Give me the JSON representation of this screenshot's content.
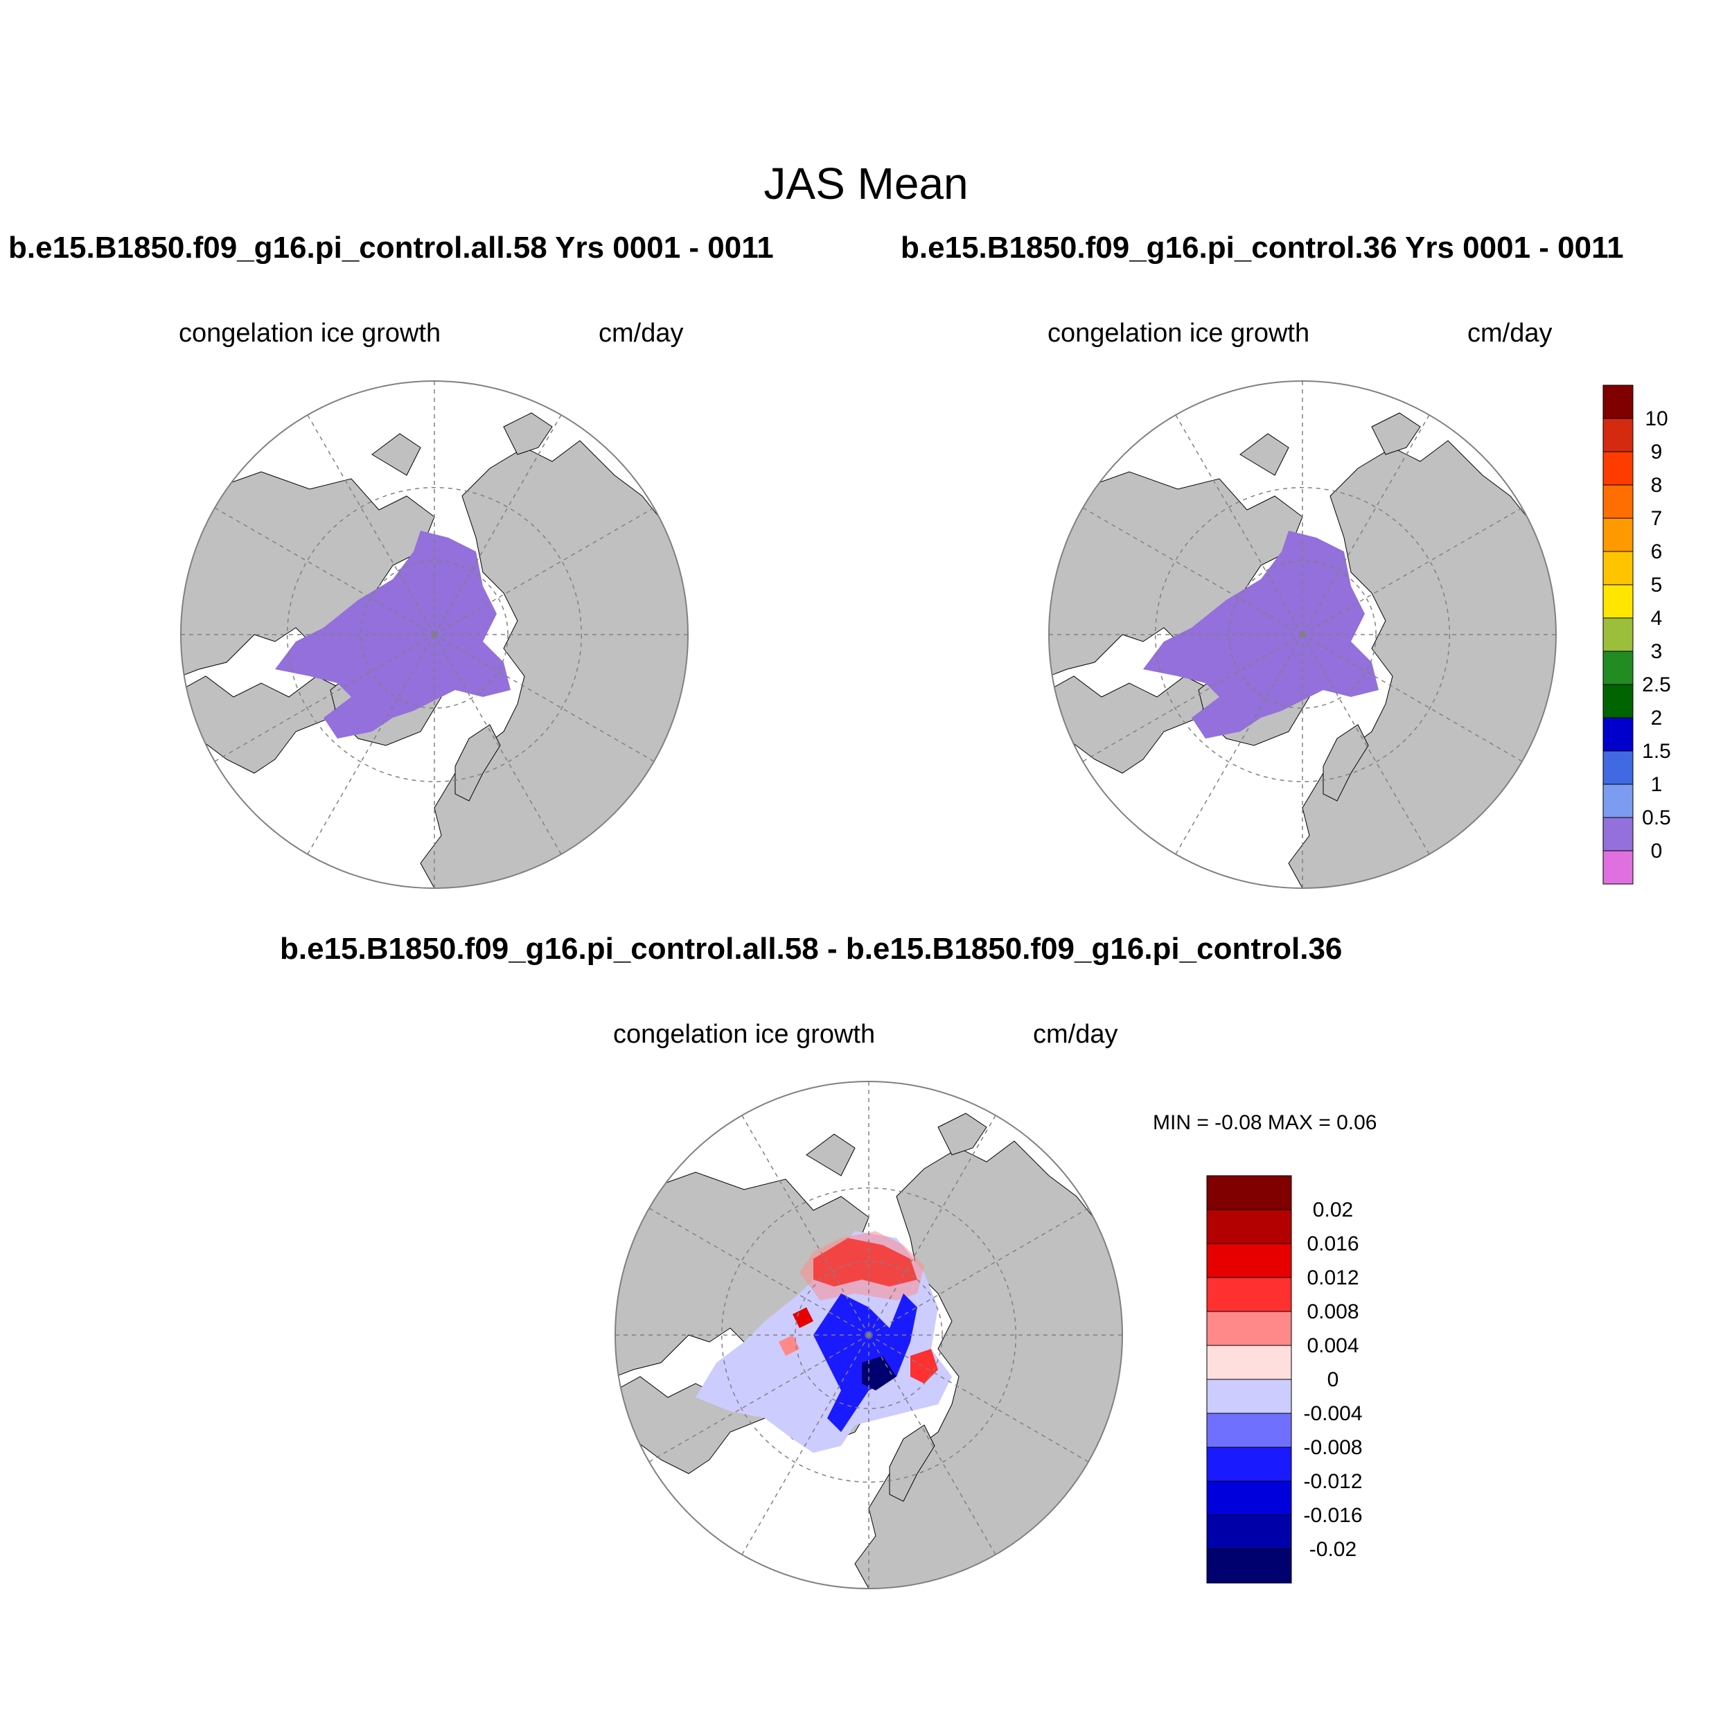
{
  "figure": {
    "title": "JAS Mean",
    "panels": [
      {
        "title": "b.e15.B1850.f09_g16.pi_control.all.58  Yrs 0001 - 0011",
        "left_label": "congelation ice growth",
        "right_label": "cm/day"
      },
      {
        "title": "b.e15.B1850.f09_g16.pi_control.36  Yrs 0001 - 0011",
        "left_label": "congelation ice growth",
        "right_label": "cm/day"
      },
      {
        "title": "b.e15.B1850.f09_g16.pi_control.all.58 - b.e15.B1850.f09_g16.pi_control.36",
        "left_label": "congelation ice growth",
        "right_label": "cm/day",
        "minmax": "MIN =  -0.08 MAX =   0.06"
      }
    ]
  },
  "colorbars": {
    "field": {
      "labels": [
        "10",
        "9",
        "8",
        "7",
        "6",
        "5",
        "4",
        "3",
        "2.5",
        "2",
        "1.5",
        "1",
        "0.5",
        "0"
      ],
      "colors": [
        "#800000",
        "#d42a10",
        "#ff3c00",
        "#ff6e00",
        "#ff9900",
        "#ffc400",
        "#ffe600",
        "#9bbf3a",
        "#228b22",
        "#006400",
        "#0000cd",
        "#4169e1",
        "#7b9cf0",
        "#9370db",
        "#e070e0"
      ]
    },
    "difference": {
      "labels": [
        "0.02",
        "0.016",
        "0.012",
        "0.008",
        "0.004",
        "0",
        "-0.004",
        "-0.008",
        "-0.012",
        "-0.016",
        "-0.02"
      ],
      "colors": [
        "#800000",
        "#b30000",
        "#e60000",
        "#ff3030",
        "#ff8888",
        "#ffdede",
        "#ccccff",
        "#7070ff",
        "#1a1aff",
        "#0000dd",
        "#0000a8",
        "#00006e"
      ]
    }
  },
  "map_colors": {
    "land": "#c0c0c0",
    "ocean": "#ffffff",
    "ice_field": "#9370db",
    "grid": "#808080"
  }
}
